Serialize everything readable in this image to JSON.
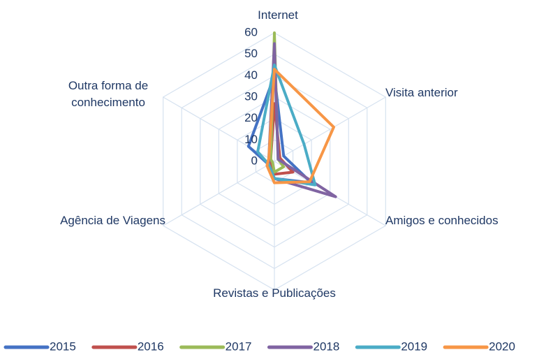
{
  "chart_data": {
    "type": "radar",
    "categories": [
      "Internet",
      "Visita anterior",
      "Amigos e conhecidos",
      "Revistas e Publicações",
      "Agência de Viagens",
      "Outra forma de conhecimento"
    ],
    "series": [
      {
        "name": "2015",
        "color": "#4472c4",
        "values": [
          40,
          5,
          20,
          8,
          3,
          14
        ]
      },
      {
        "name": "2016",
        "color": "#c0504d",
        "values": [
          27,
          3,
          10,
          6,
          2,
          2
        ]
      },
      {
        "name": "2017",
        "color": "#9bbb59",
        "values": [
          60,
          2,
          5,
          5,
          1,
          2
        ]
      },
      {
        "name": "2018",
        "color": "#8064a2",
        "values": [
          55,
          2,
          33,
          8,
          3,
          3
        ]
      },
      {
        "name": "2019",
        "color": "#4bacc6",
        "values": [
          45,
          16,
          22,
          8,
          3,
          9
        ]
      },
      {
        "name": "2020",
        "color": "#f79646",
        "values": [
          43,
          32,
          19,
          10,
          4,
          3
        ]
      }
    ],
    "ylim": [
      0,
      60
    ],
    "yticks": [
      0,
      10,
      20,
      30,
      40,
      50,
      60
    ],
    "grid": true
  }
}
